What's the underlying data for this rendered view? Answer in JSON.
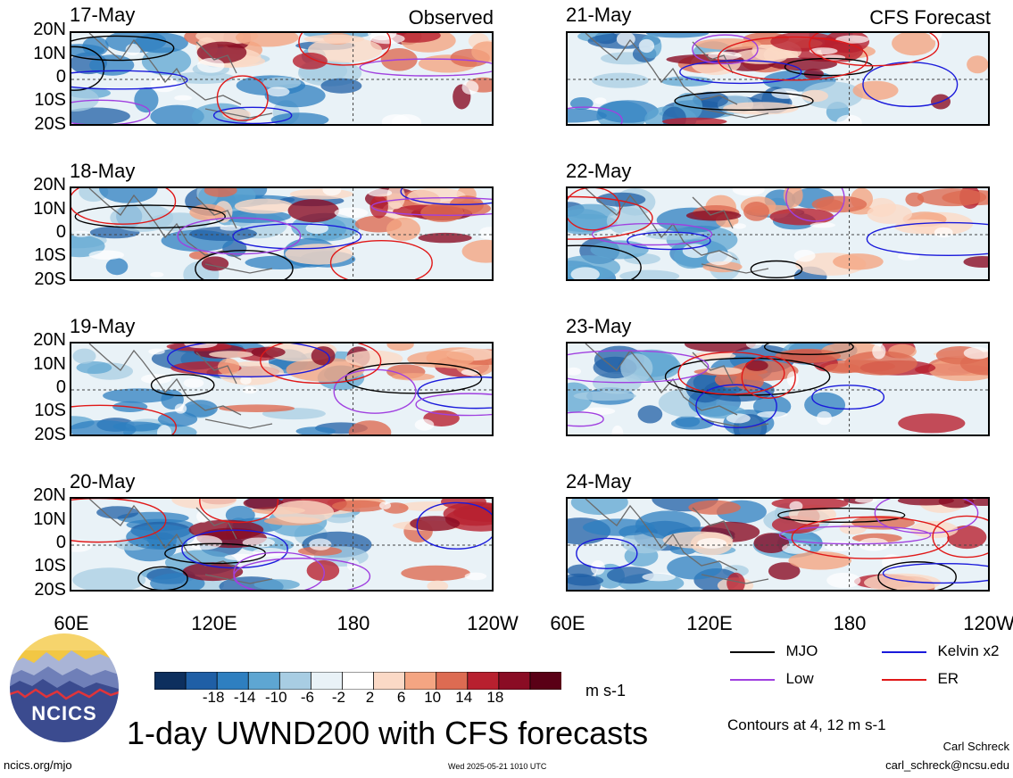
{
  "header": {
    "left_title": "Observed",
    "right_title": "CFS Forecast"
  },
  "panels": {
    "observed_dates": [
      "17-May",
      "18-May",
      "19-May",
      "20-May"
    ],
    "forecast_dates": [
      "21-May",
      "22-May",
      "23-May",
      "24-May"
    ]
  },
  "lat_labels": [
    "20N",
    "10N",
    "0",
    "10S",
    "20S"
  ],
  "lon_labels": [
    "60E",
    "120E",
    "180",
    "120W"
  ],
  "colorbar": {
    "ticks": [
      "-18",
      "-14",
      "-10",
      "-6",
      "-2",
      "2",
      "6",
      "10",
      "14",
      "18"
    ],
    "colors": [
      "#0d2f5e",
      "#1f5fa6",
      "#2e7fc0",
      "#5ea6d2",
      "#a8cde3",
      "#e9f2f7",
      "#ffffff",
      "#fbd9c6",
      "#f4a582",
      "#dd6b52",
      "#b8202f",
      "#8a0c24",
      "#5a0016"
    ],
    "unit": "m s-1"
  },
  "legend": {
    "items": [
      {
        "label": "MJO",
        "color": "#000000"
      },
      {
        "label": "Kelvin x2",
        "color": "#1a1adb"
      },
      {
        "label": "Low",
        "color": "#a040e0"
      },
      {
        "label": "ER",
        "color": "#e01818"
      }
    ],
    "contours_note": "Contours at 4, 12 m s-1"
  },
  "logo": {
    "text": "NCICS"
  },
  "footer": {
    "title": "1-day UWND200 with CFS forecasts",
    "url": "ncics.org/mjo",
    "timestamp": "Wed 2025-05-21 1010 UTC",
    "author": "Carl Schreck",
    "email": "carl_schreck@ncsu.edu"
  }
}
